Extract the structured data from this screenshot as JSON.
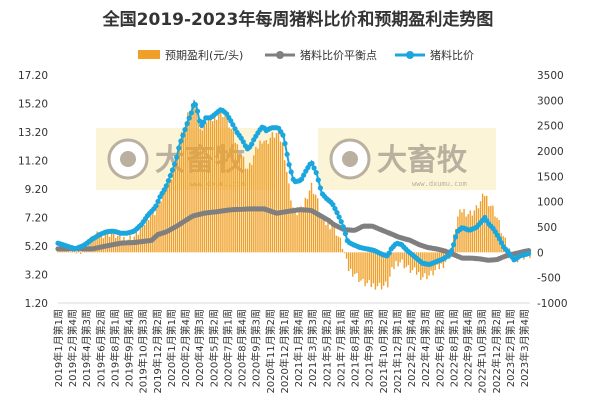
{
  "chart_data": {
    "type": "bar+line",
    "title": "全国2019-2023年每周猪料比价和预期盈利走势图",
    "legend": {
      "position": "top",
      "entries": [
        "预期盈利(元/头)",
        "猪料比价平衡点",
        "猪料比价"
      ]
    },
    "y_left": {
      "min": 1.2,
      "max": 17.2,
      "ticks": [
        "17.20",
        "15.20",
        "13.20",
        "11.20",
        "9.20",
        "7.20",
        "5.20",
        "3.20",
        "1.20"
      ]
    },
    "y_right": {
      "min": -1000,
      "max": 3500,
      "ticks": [
        "3500",
        "3000",
        "2500",
        "2000",
        "1500",
        "1000",
        "500",
        "0",
        "-500",
        "-1000"
      ]
    },
    "x_tick_labels": [
      "2019年1月第1周",
      "2019年2月第4周",
      "2019年4月第3周",
      "2019年6月第2周",
      "2019年8月第1周",
      "2019年9月第4周",
      "2019年10月第3周",
      "2019年12月第2周",
      "2020年1月第1周",
      "2020年2月第4周",
      "2020年4月第3周",
      "2020年5月第2周",
      "2020年7月第1周",
      "2020年8月第4周",
      "2020年9月第3周",
      "2020年11月第2周",
      "2020年12月第1周",
      "2021年1月第4周",
      "2021年3月第3周",
      "2021年5月第2周",
      "2021年7月第1周",
      "2021年8月第4周",
      "2021年9月第3周",
      "2021年10月第2周",
      "2021年12月第1周",
      "2022年2月第4周",
      "2022年4月第3周",
      "2022年6月第2周",
      "2022年8月第1周",
      "2022年9月第4周",
      "2022年10月第3周",
      "2022年12月第2周",
      "2023年2月第1周",
      "2023年3月第4周"
    ],
    "series": [
      {
        "name": "预期盈利(元/头)",
        "type": "bar",
        "axis": "right",
        "color": "#f0a028"
      },
      {
        "name": "猪料比价平衡点",
        "type": "line",
        "axis": "left",
        "color": "#7f7f7f",
        "values": [
          [
            0,
            5.0
          ],
          [
            40,
            5.0
          ],
          [
            55,
            5.2
          ],
          [
            72,
            5.4
          ],
          [
            88,
            5.45
          ],
          [
            108,
            5.6
          ],
          [
            115,
            6.0
          ],
          [
            125,
            6.2
          ],
          [
            137,
            6.6
          ],
          [
            155,
            7.3
          ],
          [
            168,
            7.5
          ],
          [
            182,
            7.6
          ],
          [
            200,
            7.75
          ],
          [
            220,
            7.8
          ],
          [
            238,
            7.8
          ],
          [
            252,
            7.5
          ],
          [
            262,
            7.6
          ],
          [
            278,
            7.75
          ],
          [
            292,
            7.7
          ],
          [
            302,
            7.35
          ],
          [
            312,
            7.0
          ],
          [
            318,
            6.7
          ],
          [
            330,
            6.35
          ],
          [
            342,
            6.3
          ],
          [
            352,
            6.6
          ],
          [
            362,
            6.6
          ],
          [
            372,
            6.35
          ],
          [
            382,
            6.1
          ],
          [
            394,
            5.8
          ],
          [
            406,
            5.6
          ],
          [
            416,
            5.3
          ],
          [
            426,
            5.1
          ],
          [
            436,
            5.0
          ],
          [
            446,
            4.85
          ],
          [
            456,
            4.6
          ],
          [
            466,
            4.35
          ],
          [
            476,
            4.35
          ],
          [
            486,
            4.3
          ],
          [
            496,
            4.2
          ],
          [
            506,
            4.25
          ],
          [
            516,
            4.5
          ],
          [
            526,
            4.65
          ],
          [
            536,
            4.8
          ],
          [
            544,
            4.9
          ]
        ]
      },
      {
        "name": "猪料比价",
        "type": "line",
        "axis": "left",
        "color": "#1ba7dd",
        "values": [
          [
            0,
            5.4
          ],
          [
            10,
            5.2
          ],
          [
            20,
            5.0
          ],
          [
            30,
            5.25
          ],
          [
            40,
            5.7
          ],
          [
            48,
            6.0
          ],
          [
            56,
            6.2
          ],
          [
            64,
            6.25
          ],
          [
            72,
            6.1
          ],
          [
            80,
            6.1
          ],
          [
            88,
            6.25
          ],
          [
            96,
            6.7
          ],
          [
            104,
            7.4
          ],
          [
            112,
            7.9
          ],
          [
            118,
            8.7
          ],
          [
            124,
            9.3
          ],
          [
            130,
            10.2
          ],
          [
            136,
            11.2
          ],
          [
            140,
            12.3
          ],
          [
            146,
            13.3
          ],
          [
            150,
            14.0
          ],
          [
            154,
            14.6
          ],
          [
            157,
            15.3
          ],
          [
            160,
            14.9
          ],
          [
            163,
            14.0
          ],
          [
            166,
            13.6
          ],
          [
            170,
            14.2
          ],
          [
            176,
            14.2
          ],
          [
            182,
            14.5
          ],
          [
            188,
            14.8
          ],
          [
            194,
            14.5
          ],
          [
            200,
            13.9
          ],
          [
            206,
            13.2
          ],
          [
            212,
            12.7
          ],
          [
            218,
            12.0
          ],
          [
            222,
            12.2
          ],
          [
            226,
            12.7
          ],
          [
            232,
            13.3
          ],
          [
            236,
            13.6
          ],
          [
            240,
            13.3
          ],
          [
            246,
            13.5
          ],
          [
            254,
            13.5
          ],
          [
            260,
            12.9
          ],
          [
            266,
            11.0
          ],
          [
            272,
            9.7
          ],
          [
            280,
            9.8
          ],
          [
            286,
            10.5
          ],
          [
            292,
            11.1
          ],
          [
            298,
            10.3
          ],
          [
            304,
            8.9
          ],
          [
            310,
            8.5
          ],
          [
            316,
            8.2
          ],
          [
            322,
            7.5
          ],
          [
            328,
            6.7
          ],
          [
            334,
            5.5
          ],
          [
            340,
            5.3
          ],
          [
            348,
            5.1
          ],
          [
            356,
            5.0
          ],
          [
            364,
            4.9
          ],
          [
            374,
            4.6
          ],
          [
            380,
            4.5
          ],
          [
            384,
            5.0
          ],
          [
            390,
            5.4
          ],
          [
            396,
            5.3
          ],
          [
            402,
            4.9
          ],
          [
            408,
            4.6
          ],
          [
            414,
            4.3
          ],
          [
            420,
            4.0
          ],
          [
            428,
            3.9
          ],
          [
            436,
            4.1
          ],
          [
            444,
            4.3
          ],
          [
            452,
            4.6
          ],
          [
            456,
            5.3
          ],
          [
            460,
            6.2
          ],
          [
            466,
            6.5
          ],
          [
            474,
            6.3
          ],
          [
            482,
            6.5
          ],
          [
            488,
            6.9
          ],
          [
            492,
            7.2
          ],
          [
            496,
            6.8
          ],
          [
            502,
            6.4
          ],
          [
            508,
            5.8
          ],
          [
            514,
            5.1
          ],
          [
            520,
            4.7
          ],
          [
            526,
            4.2
          ],
          [
            532,
            4.5
          ],
          [
            538,
            4.6
          ],
          [
            544,
            4.7
          ]
        ]
      }
    ]
  }
}
